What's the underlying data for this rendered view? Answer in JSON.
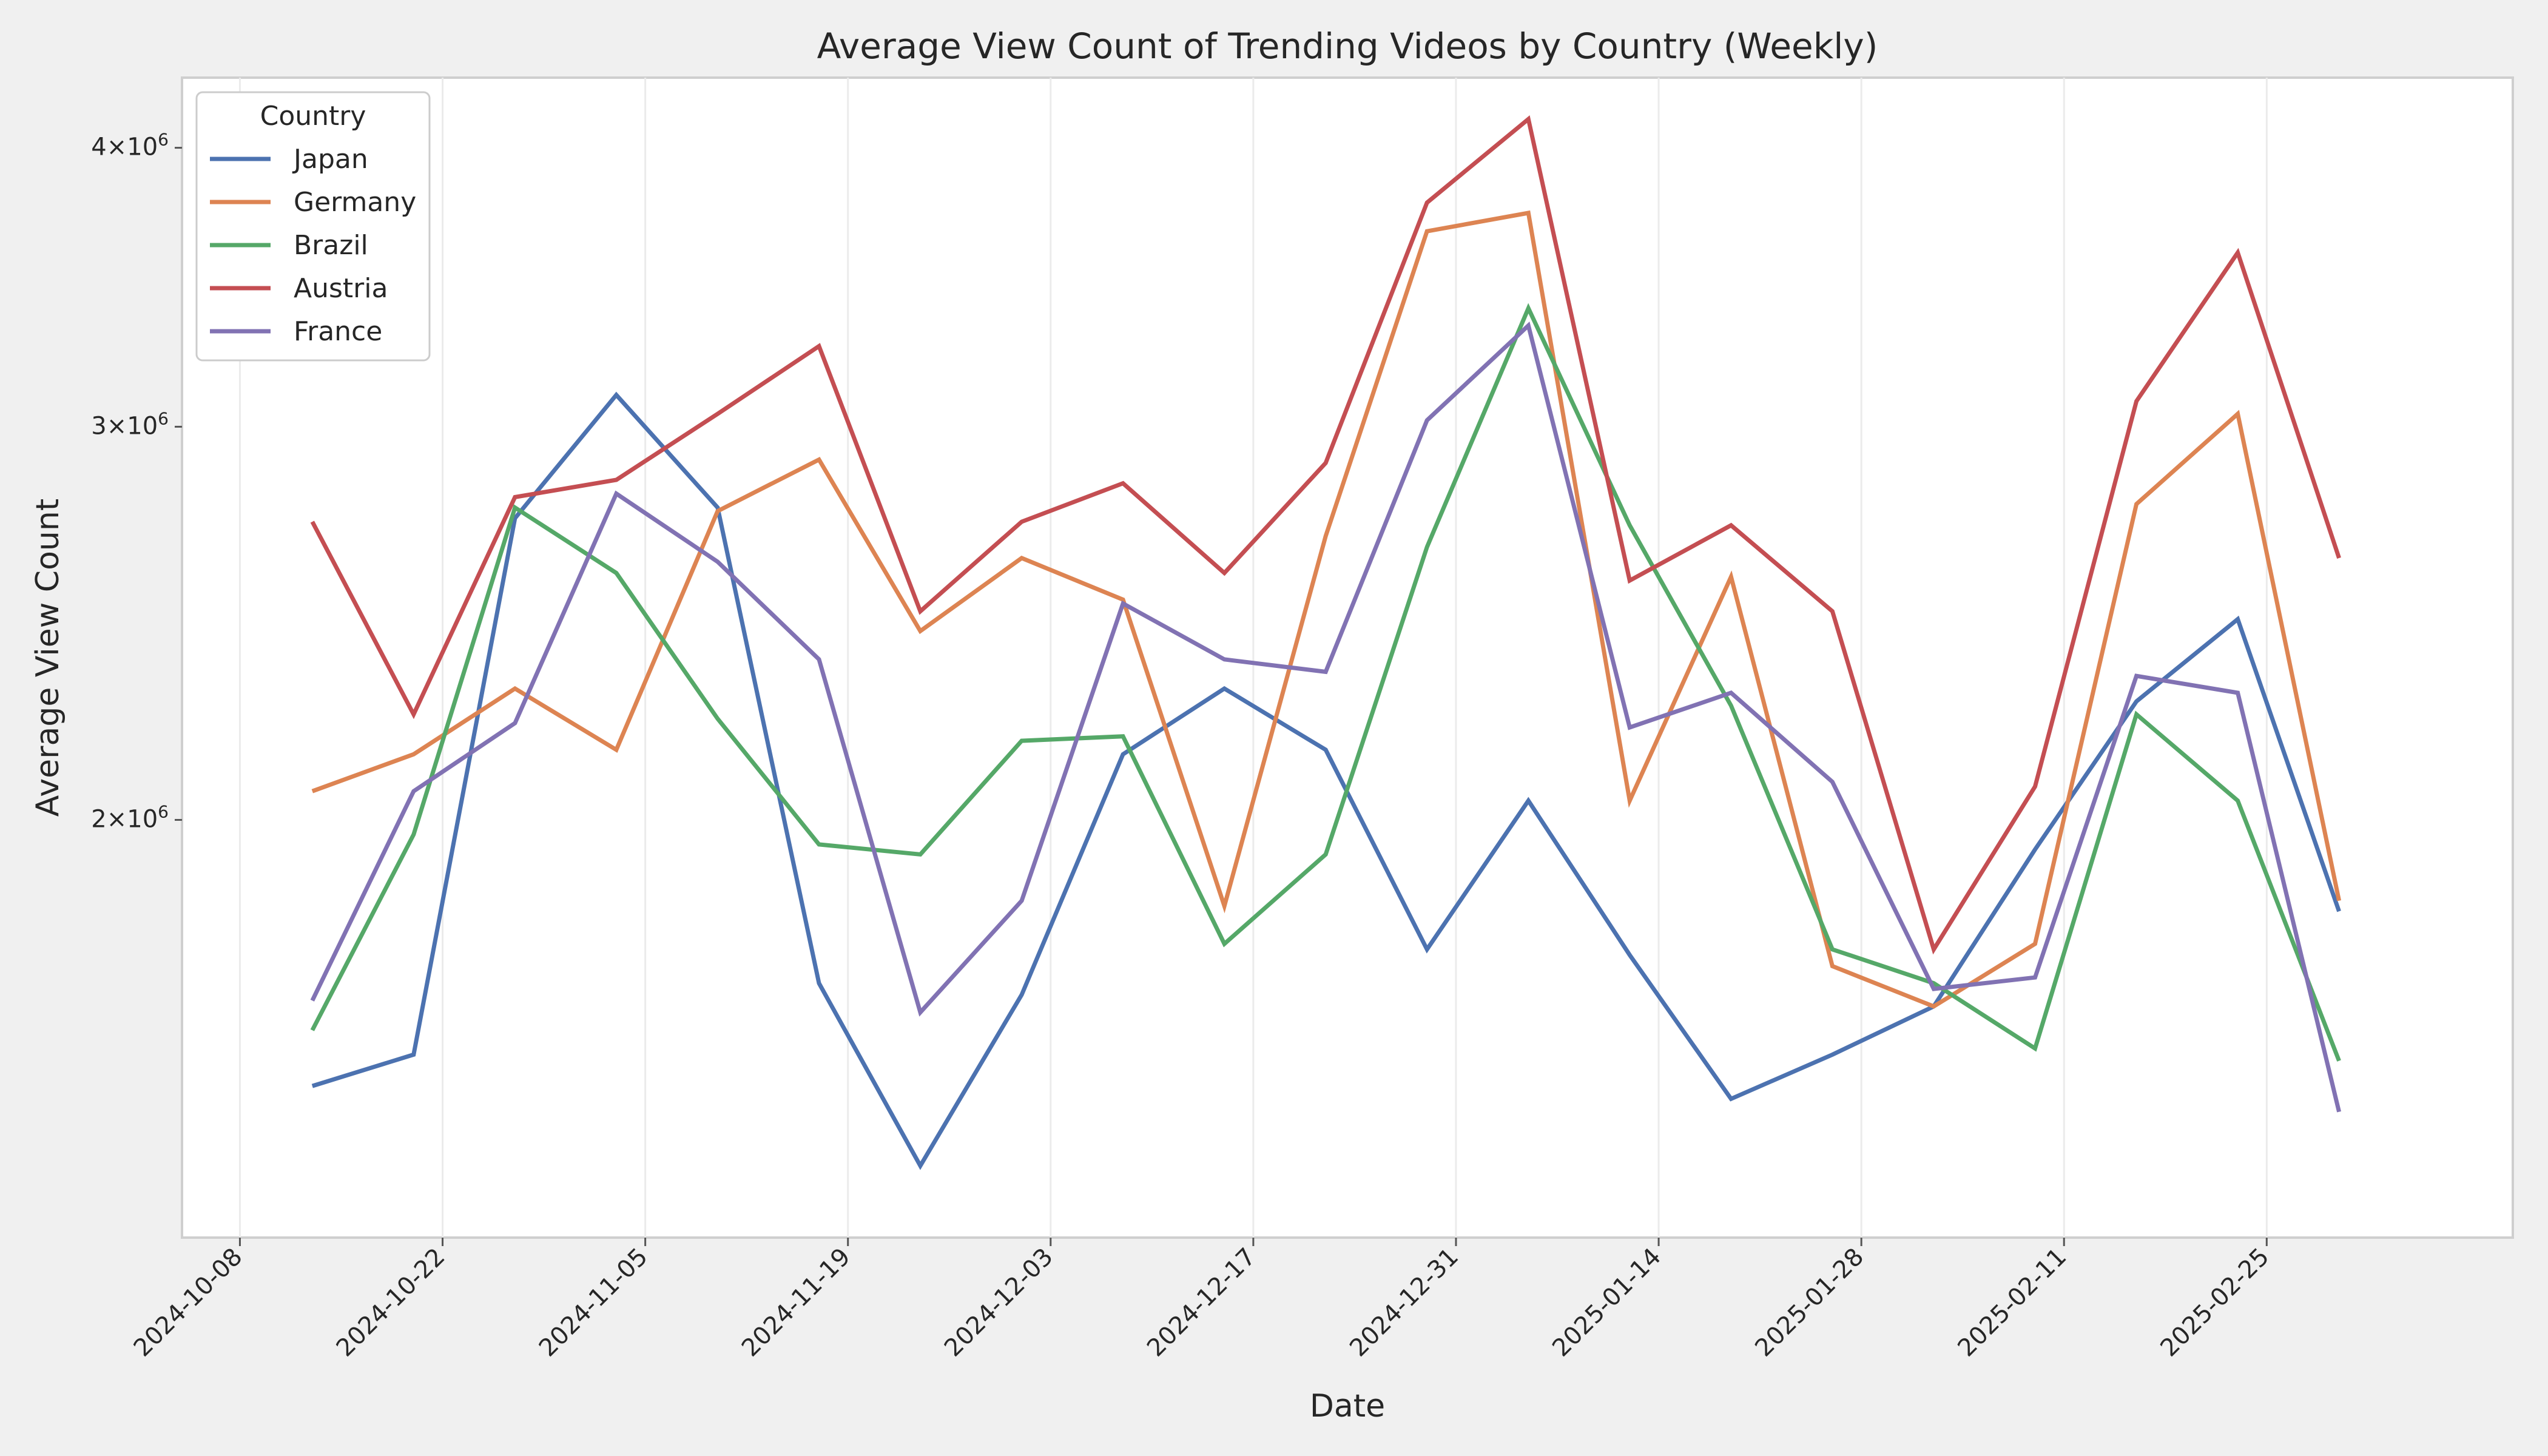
{
  "chart_data": {
    "type": "line",
    "title": "Average View Count of Trending Videos by Country (Weekly)",
    "xlabel": "Date",
    "ylabel": "Average View Count",
    "yscale": "log",
    "ylim": [
      1300000,
      4300000
    ],
    "xlim": [
      "2024-10-04",
      "2025-03-14"
    ],
    "grid": true,
    "legend": {
      "title": "Country",
      "position": "top-left"
    },
    "x_ticks": [
      "2024-10-08",
      "2024-10-22",
      "2024-11-05",
      "2024-11-19",
      "2024-12-03",
      "2024-12-17",
      "2024-12-31",
      "2025-01-14",
      "2025-01-28",
      "2025-02-11",
      "2025-02-25"
    ],
    "y_ticks": [
      {
        "value": 2000000,
        "mantissa": "2",
        "base": "10",
        "exp": "6"
      },
      {
        "value": 3000000,
        "mantissa": "3",
        "base": "10",
        "exp": "6"
      },
      {
        "value": 4000000,
        "mantissa": "4",
        "base": "10",
        "exp": "6"
      }
    ],
    "x": [
      "2024-10-13",
      "2024-10-20",
      "2024-10-27",
      "2024-11-03",
      "2024-11-10",
      "2024-11-17",
      "2024-11-24",
      "2024-12-01",
      "2024-12-08",
      "2024-12-15",
      "2024-12-22",
      "2024-12-29",
      "2025-01-05",
      "2025-01-12",
      "2025-01-19",
      "2025-01-26",
      "2025-02-02",
      "2025-02-09",
      "2025-02-16",
      "2025-02-23",
      "2025-03-02"
    ],
    "series": [
      {
        "name": "Japan",
        "color": "#4c72b0",
        "values": [
          1520000,
          1570000,
          2730000,
          3100000,
          2760000,
          1690000,
          1400000,
          1670000,
          2140000,
          2290000,
          2150000,
          1750000,
          2040000,
          1740000,
          1500000,
          1570000,
          1650000,
          1940000,
          2260000,
          2460000,
          1820000
        ]
      },
      {
        "name": "Germany",
        "color": "#dd8452",
        "values": [
          2060000,
          2140000,
          2290000,
          2150000,
          2750000,
          2900000,
          2430000,
          2620000,
          2510000,
          1830000,
          2680000,
          3670000,
          3740000,
          2040000,
          2570000,
          1720000,
          1650000,
          1760000,
          2770000,
          3040000,
          1840000
        ]
      },
      {
        "name": "Brazil",
        "color": "#55a868",
        "values": [
          1610000,
          1970000,
          2760000,
          2580000,
          2220000,
          1950000,
          1930000,
          2170000,
          2180000,
          1760000,
          1930000,
          2650000,
          3390000,
          2710000,
          2250000,
          1750000,
          1690000,
          1580000,
          2230000,
          2040000,
          1560000
        ]
      },
      {
        "name": "Austria",
        "color": "#c44e52",
        "values": [
          2720000,
          2230000,
          2790000,
          2840000,
          3040000,
          3260000,
          2480000,
          2720000,
          2830000,
          2580000,
          2890000,
          3780000,
          4120000,
          2560000,
          2710000,
          2480000,
          1750000,
          2070000,
          3080000,
          3590000,
          2620000
        ]
      },
      {
        "name": "France",
        "color": "#8172b3",
        "values": [
          1660000,
          2060000,
          2210000,
          2800000,
          2610000,
          2360000,
          1640000,
          1840000,
          2500000,
          2360000,
          2330000,
          3020000,
          3330000,
          2200000,
          2280000,
          2080000,
          1680000,
          1700000,
          2320000,
          2280000,
          1480000
        ]
      }
    ]
  }
}
